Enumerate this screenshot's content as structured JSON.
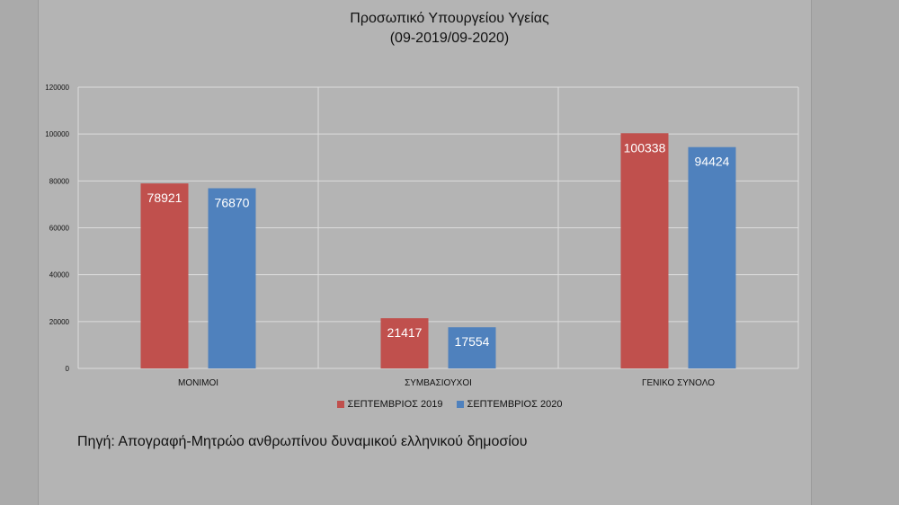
{
  "chart_data": {
    "type": "bar",
    "title": "Προσωπικό Υπουργείου Υγείας",
    "subtitle": "(09-2019/09-2020)",
    "categories": [
      "ΜΟΝΙΜΟΙ",
      "ΣΥΜΒΑΣΙΟΥΧΟΙ",
      "ΓΕΝΙΚΟ ΣΥΝΟΛΟ"
    ],
    "series": [
      {
        "name": "ΣΕΠΤΕΜΒΡΙΟΣ 2019",
        "color": "#c0504d",
        "values": [
          78921,
          21417,
          100338
        ]
      },
      {
        "name": "ΣΕΠΤΕΜΒΡΙΟΣ 2020",
        "color": "#4f81bd",
        "values": [
          76870,
          17554,
          94424
        ]
      }
    ],
    "ylim": [
      0,
      120000
    ],
    "yticks": [
      0,
      20000,
      40000,
      60000,
      80000,
      100000,
      120000
    ],
    "grid": true,
    "legend_position": "bottom",
    "source": "Πηγή: Απογραφή-Μητρώο ανθρωπίνου δυναμικού ελληνικού δημοσίου"
  }
}
